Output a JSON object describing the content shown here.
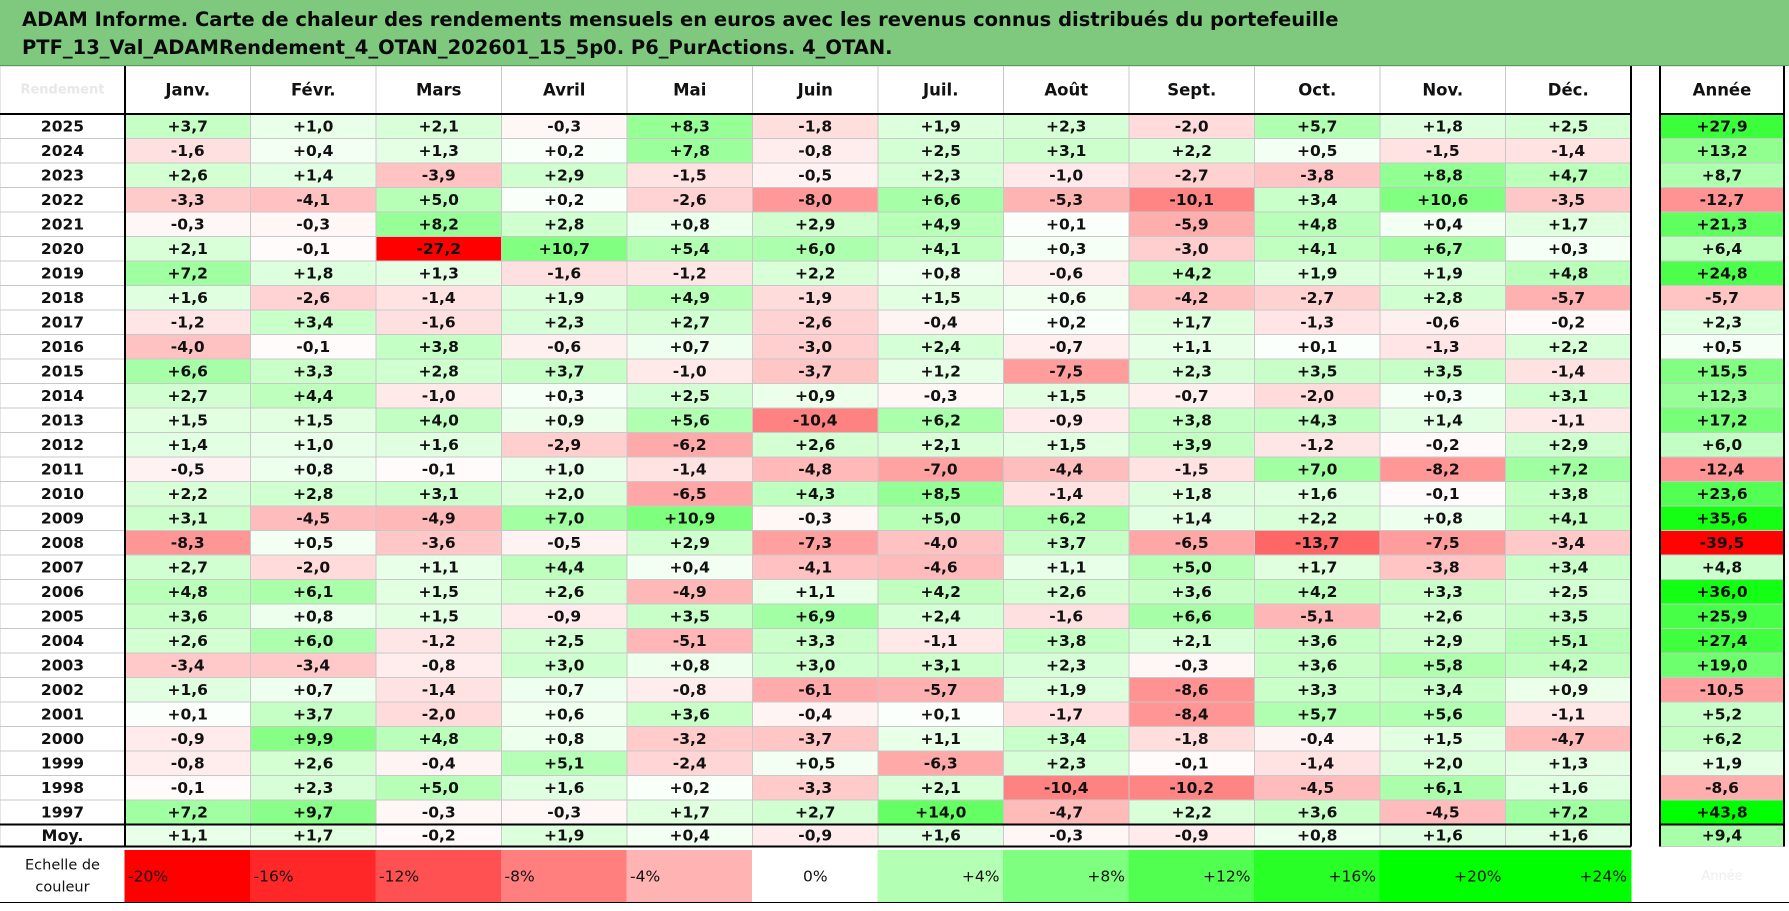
{
  "title": {
    "line1": "ADAM Informe. Carte de chaleur des rendements mensuels en euros avec les revenus connus distribués du portefeuille",
    "line2": "PTF_13_Val_ADAMRendement_4_OTAN_202601_15_5p0. P6_PurActions. 4_OTAN."
  },
  "chart_data": {
    "type": "heatmap",
    "corner_label": "Rendement",
    "columns": [
      "Janv.",
      "Févr.",
      "Mars",
      "Avril",
      "Mai",
      "Juin",
      "Juil.",
      "Août",
      "Sept.",
      "Oct.",
      "Nov.",
      "Déc."
    ],
    "year_column": "Année",
    "rows": [
      {
        "label": "2025",
        "values": [
          "+3,7",
          "+1,0",
          "+2,1",
          "-0,3",
          "+8,3",
          "-1,8",
          "+1,9",
          "+2,3",
          "-2,0",
          "+5,7",
          "+1,8",
          "+2,5"
        ],
        "year": "+27,9"
      },
      {
        "label": "2024",
        "values": [
          "-1,6",
          "+0,4",
          "+1,3",
          "+0,2",
          "+7,8",
          "-0,8",
          "+2,5",
          "+3,1",
          "+2,2",
          "+0,5",
          "-1,5",
          "-1,4"
        ],
        "year": "+13,2"
      },
      {
        "label": "2023",
        "values": [
          "+2,6",
          "+1,4",
          "-3,9",
          "+2,9",
          "-1,5",
          "-0,5",
          "+2,3",
          "-1,0",
          "-2,7",
          "-3,8",
          "+8,8",
          "+4,7"
        ],
        "year": "+8,7"
      },
      {
        "label": "2022",
        "values": [
          "-3,3",
          "-4,1",
          "+5,0",
          "+0,2",
          "-2,6",
          "-8,0",
          "+6,6",
          "-5,3",
          "-10,1",
          "+3,4",
          "+10,6",
          "-3,5"
        ],
        "year": "-12,7"
      },
      {
        "label": "2021",
        "values": [
          "-0,3",
          "-0,3",
          "+8,2",
          "+2,8",
          "+0,8",
          "+2,9",
          "+4,9",
          "+0,1",
          "-5,9",
          "+4,8",
          "+0,4",
          "+1,7"
        ],
        "year": "+21,3"
      },
      {
        "label": "2020",
        "values": [
          "+2,1",
          "-0,1",
          "-27,2",
          "+10,7",
          "+5,4",
          "+6,0",
          "+4,1",
          "+0,3",
          "-3,0",
          "+4,1",
          "+6,7",
          "+0,3"
        ],
        "year": "+6,4"
      },
      {
        "label": "2019",
        "values": [
          "+7,2",
          "+1,8",
          "+1,3",
          "-1,6",
          "-1,2",
          "+2,2",
          "+0,8",
          "-0,6",
          "+4,2",
          "+1,9",
          "+1,9",
          "+4,8"
        ],
        "year": "+24,8"
      },
      {
        "label": "2018",
        "values": [
          "+1,6",
          "-2,6",
          "-1,4",
          "+1,9",
          "+4,9",
          "-1,9",
          "+1,5",
          "+0,6",
          "-4,2",
          "-2,7",
          "+2,8",
          "-5,7"
        ],
        "year": "-5,7"
      },
      {
        "label": "2017",
        "values": [
          "-1,2",
          "+3,4",
          "-1,6",
          "+2,3",
          "+2,7",
          "-2,6",
          "-0,4",
          "+0,2",
          "+1,7",
          "-1,3",
          "-0,6",
          "-0,2"
        ],
        "year": "+2,3"
      },
      {
        "label": "2016",
        "values": [
          "-4,0",
          "-0,1",
          "+3,8",
          "-0,6",
          "+0,7",
          "-3,0",
          "+2,4",
          "-0,7",
          "+1,1",
          "+0,1",
          "-1,3",
          "+2,2"
        ],
        "year": "+0,5"
      },
      {
        "label": "2015",
        "values": [
          "+6,6",
          "+3,3",
          "+2,8",
          "+3,7",
          "-1,0",
          "-3,7",
          "+1,2",
          "-7,5",
          "+2,3",
          "+3,5",
          "+3,5",
          "-1,4"
        ],
        "year": "+15,5"
      },
      {
        "label": "2014",
        "values": [
          "+2,7",
          "+4,4",
          "-1,0",
          "+0,3",
          "+2,5",
          "+0,9",
          "-0,3",
          "+1,5",
          "-0,7",
          "-2,0",
          "+0,3",
          "+3,1"
        ],
        "year": "+12,3"
      },
      {
        "label": "2013",
        "values": [
          "+1,5",
          "+1,5",
          "+4,0",
          "+0,9",
          "+5,6",
          "-10,4",
          "+6,2",
          "-0,9",
          "+3,8",
          "+4,3",
          "+1,4",
          "-1,1"
        ],
        "year": "+17,2"
      },
      {
        "label": "2012",
        "values": [
          "+1,4",
          "+1,0",
          "+1,6",
          "-2,9",
          "-6,2",
          "+2,6",
          "+2,1",
          "+1,5",
          "+3,9",
          "-1,2",
          "-0,2",
          "+2,9"
        ],
        "year": "+6,0"
      },
      {
        "label": "2011",
        "values": [
          "-0,5",
          "+0,8",
          "-0,1",
          "+1,0",
          "-1,4",
          "-4,8",
          "-7,0",
          "-4,4",
          "-1,5",
          "+7,0",
          "-8,2",
          "+7,2"
        ],
        "year": "-12,4"
      },
      {
        "label": "2010",
        "values": [
          "+2,2",
          "+2,8",
          "+3,1",
          "+2,0",
          "-6,5",
          "+4,3",
          "+8,5",
          "-1,4",
          "+1,8",
          "+1,6",
          "-0,1",
          "+3,8"
        ],
        "year": "+23,6"
      },
      {
        "label": "2009",
        "values": [
          "+3,1",
          "-4,5",
          "-4,9",
          "+7,0",
          "+10,9",
          "-0,3",
          "+5,0",
          "+6,2",
          "+1,4",
          "+2,2",
          "+0,8",
          "+4,1"
        ],
        "year": "+35,6"
      },
      {
        "label": "2008",
        "values": [
          "-8,3",
          "+0,5",
          "-3,6",
          "-0,5",
          "+2,9",
          "-7,3",
          "-4,0",
          "+3,7",
          "-6,5",
          "-13,7",
          "-7,5",
          "-3,4"
        ],
        "year": "-39,5"
      },
      {
        "label": "2007",
        "values": [
          "+2,7",
          "-2,0",
          "+1,1",
          "+4,4",
          "+0,4",
          "-4,1",
          "-4,6",
          "+1,1",
          "+5,0",
          "+1,7",
          "-3,8",
          "+3,4"
        ],
        "year": "+4,8"
      },
      {
        "label": "2006",
        "values": [
          "+4,8",
          "+6,1",
          "+1,5",
          "+2,6",
          "-4,9",
          "+1,1",
          "+4,2",
          "+2,6",
          "+3,6",
          "+4,2",
          "+3,3",
          "+2,5"
        ],
        "year": "+36,0"
      },
      {
        "label": "2005",
        "values": [
          "+3,6",
          "+0,8",
          "+1,5",
          "-0,9",
          "+3,5",
          "+6,9",
          "+2,4",
          "-1,6",
          "+6,6",
          "-5,1",
          "+2,6",
          "+3,5"
        ],
        "year": "+25,9"
      },
      {
        "label": "2004",
        "values": [
          "+2,6",
          "+6,0",
          "-1,2",
          "+2,5",
          "-5,1",
          "+3,3",
          "-1,1",
          "+3,8",
          "+2,1",
          "+3,6",
          "+2,9",
          "+5,1"
        ],
        "year": "+27,4"
      },
      {
        "label": "2003",
        "values": [
          "-3,4",
          "-3,4",
          "-0,8",
          "+3,0",
          "+0,8",
          "+3,0",
          "+3,1",
          "+2,3",
          "-0,3",
          "+3,6",
          "+5,8",
          "+4,2"
        ],
        "year": "+19,0"
      },
      {
        "label": "2002",
        "values": [
          "+1,6",
          "+0,7",
          "-1,4",
          "+0,7",
          "-0,8",
          "-6,1",
          "-5,7",
          "+1,9",
          "-8,6",
          "+3,3",
          "+3,4",
          "+0,9"
        ],
        "year": "-10,5"
      },
      {
        "label": "2001",
        "values": [
          "+0,1",
          "+3,7",
          "-2,0",
          "+0,6",
          "+3,6",
          "-0,4",
          "+0,1",
          "-1,7",
          "-8,4",
          "+5,7",
          "+5,6",
          "-1,1"
        ],
        "year": "+5,2"
      },
      {
        "label": "2000",
        "values": [
          "-0,9",
          "+9,9",
          "+4,8",
          "+0,8",
          "-3,2",
          "-3,7",
          "+1,1",
          "+3,4",
          "-1,8",
          "-0,4",
          "+1,5",
          "-4,7"
        ],
        "year": "+6,2"
      },
      {
        "label": "1999",
        "values": [
          "-0,8",
          "+2,6",
          "-0,4",
          "+5,1",
          "-2,4",
          "+0,5",
          "-6,3",
          "+2,3",
          "-0,1",
          "-1,4",
          "+2,0",
          "+1,3"
        ],
        "year": "+1,9"
      },
      {
        "label": "1998",
        "values": [
          "-0,1",
          "+2,3",
          "+5,0",
          "+1,6",
          "+0,2",
          "-3,3",
          "+2,1",
          "-10,4",
          "-10,2",
          "-4,5",
          "+6,1",
          "+1,6"
        ],
        "year": "-8,6"
      },
      {
        "label": "1997",
        "values": [
          "+7,2",
          "+9,7",
          "-0,3",
          "-0,3",
          "+1,7",
          "+2,7",
          "+14,0",
          "-4,7",
          "+2,2",
          "+3,6",
          "-4,5",
          "+7,2"
        ],
        "year": "+43,8"
      }
    ],
    "average_row": {
      "label": "Moy.",
      "values": [
        "+1,1",
        "+1,7",
        "-0,2",
        "+1,9",
        "+0,4",
        "-0,9",
        "+1,6",
        "-0,3",
        "-0,9",
        "+0,8",
        "+1,6",
        "+1,6"
      ],
      "year": "+9,4"
    },
    "scale": {
      "label_line1": "Echelle de",
      "label_line2": "couleur",
      "steps": [
        "-20%",
        "-16%",
        "-12%",
        "-8%",
        "-4%",
        "0%",
        "+4%",
        "+8%",
        "+12%",
        "+16%",
        "+20%",
        "+24%"
      ],
      "year_cell": "Année"
    },
    "color_anchors": {
      "negative": "#ff0000",
      "zero": "#ffffff",
      "positive": "#00ff00"
    }
  }
}
